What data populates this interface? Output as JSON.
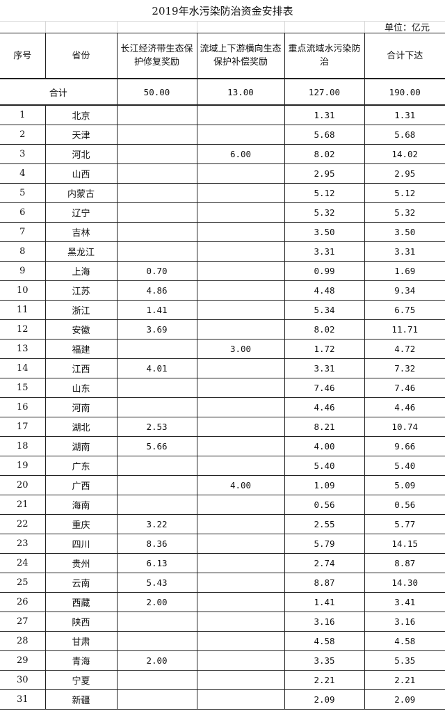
{
  "title": "2019年水污染防治资金安排表",
  "unit": "单位：亿元",
  "headers": [
    "序号",
    "省份",
    "长江经济带生态保护修复奖励",
    "流域上下游横向生态保护补偿奖励",
    "重点流域水污染防治",
    "合计下达"
  ],
  "total": {
    "label": "合计",
    "c1": "50.00",
    "c2": "13.00",
    "c3": "127.00",
    "c4": "190.00"
  },
  "rows": [
    [
      "1",
      "北京",
      "",
      "",
      "1.31",
      "1.31"
    ],
    [
      "2",
      "天津",
      "",
      "",
      "5.68",
      "5.68"
    ],
    [
      "3",
      "河北",
      "",
      "6.00",
      "8.02",
      "14.02"
    ],
    [
      "4",
      "山西",
      "",
      "",
      "2.95",
      "2.95"
    ],
    [
      "5",
      "内蒙古",
      "",
      "",
      "5.12",
      "5.12"
    ],
    [
      "6",
      "辽宁",
      "",
      "",
      "5.32",
      "5.32"
    ],
    [
      "7",
      "吉林",
      "",
      "",
      "3.50",
      "3.50"
    ],
    [
      "8",
      "黑龙江",
      "",
      "",
      "3.31",
      "3.31"
    ],
    [
      "9",
      "上海",
      "0.70",
      "",
      "0.99",
      "1.69"
    ],
    [
      "10",
      "江苏",
      "4.86",
      "",
      "4.48",
      "9.34"
    ],
    [
      "11",
      "浙江",
      "1.41",
      "",
      "5.34",
      "6.75"
    ],
    [
      "12",
      "安徽",
      "3.69",
      "",
      "8.02",
      "11.71"
    ],
    [
      "13",
      "福建",
      "",
      "3.00",
      "1.72",
      "4.72"
    ],
    [
      "14",
      "江西",
      "4.01",
      "",
      "3.31",
      "7.32"
    ],
    [
      "15",
      "山东",
      "",
      "",
      "7.46",
      "7.46"
    ],
    [
      "16",
      "河南",
      "",
      "",
      "4.46",
      "4.46"
    ],
    [
      "17",
      "湖北",
      "2.53",
      "",
      "8.21",
      "10.74"
    ],
    [
      "18",
      "湖南",
      "5.66",
      "",
      "4.00",
      "9.66"
    ],
    [
      "19",
      "广东",
      "",
      "",
      "5.40",
      "5.40"
    ],
    [
      "20",
      "广西",
      "",
      "4.00",
      "1.09",
      "5.09"
    ],
    [
      "21",
      "海南",
      "",
      "",
      "0.56",
      "0.56"
    ],
    [
      "22",
      "重庆",
      "3.22",
      "",
      "2.55",
      "5.77"
    ],
    [
      "23",
      "四川",
      "8.36",
      "",
      "5.79",
      "14.15"
    ],
    [
      "24",
      "贵州",
      "6.13",
      "",
      "2.74",
      "8.87"
    ],
    [
      "25",
      "云南",
      "5.43",
      "",
      "8.87",
      "14.30"
    ],
    [
      "26",
      "西藏",
      "2.00",
      "",
      "1.41",
      "3.41"
    ],
    [
      "27",
      "陕西",
      "",
      "",
      "3.16",
      "3.16"
    ],
    [
      "28",
      "甘肃",
      "",
      "",
      "4.58",
      "4.58"
    ],
    [
      "29",
      "青海",
      "2.00",
      "",
      "3.35",
      "5.35"
    ],
    [
      "30",
      "宁夏",
      "",
      "",
      "2.21",
      "2.21"
    ],
    [
      "31",
      "新疆",
      "",
      "",
      "2.09",
      "2.09"
    ]
  ]
}
